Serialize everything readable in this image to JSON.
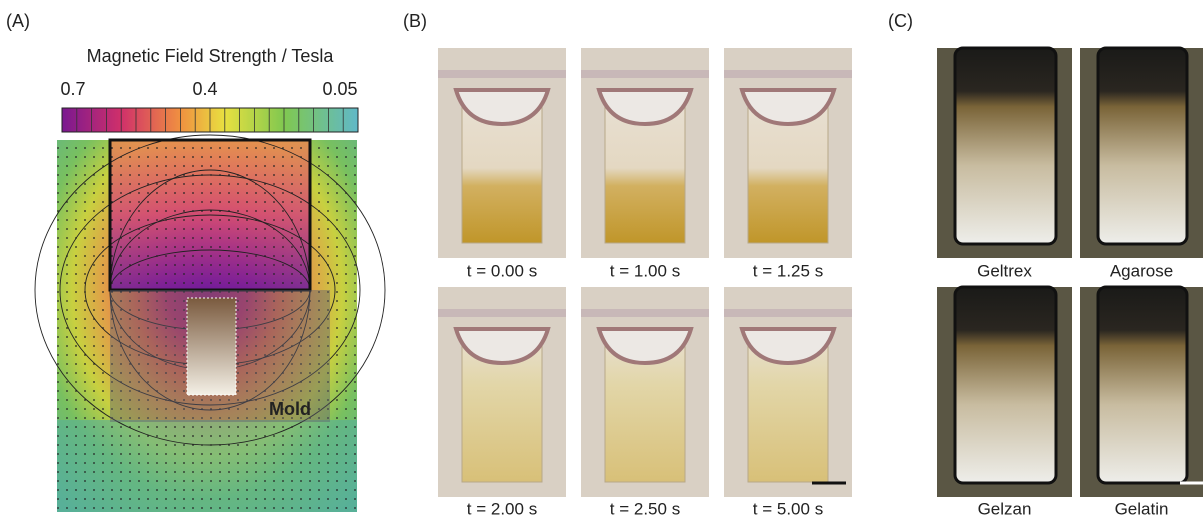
{
  "panel_a": {
    "label": "(A)",
    "colorbar": {
      "title": "Magnetic Field Strength / Tesla",
      "ticks": [
        "0.7",
        "0.4",
        "0.05"
      ]
    },
    "mold_label": "Mold"
  },
  "panel_b": {
    "label": "(B)",
    "frames": [
      "t = 0.00 s",
      "t = 1.00 s",
      "t = 1.25 s",
      "t = 2.00 s",
      "t = 2.50 s",
      "t = 5.00 s"
    ]
  },
  "panel_c": {
    "label": "(C)",
    "samples": [
      "Geltrex",
      "Agarose",
      "Gelzan",
      "Gelatin"
    ]
  }
}
